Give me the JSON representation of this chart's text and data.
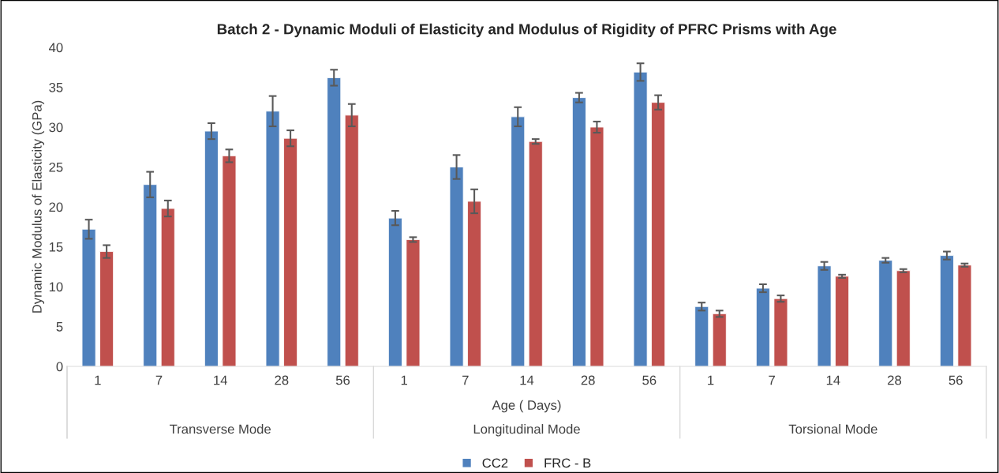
{
  "chart_data": {
    "type": "bar",
    "title": "Batch 2 - Dynamic Moduli of Elasticity and Modulus of Rigidity of PFRC Prisms with Age",
    "xlabel": "Age ( Days)",
    "ylabel": "Dynamic Modulus of Elasticity (GPa)",
    "categories": [
      "1",
      "7",
      "14",
      "28",
      "56",
      "1",
      "7",
      "14",
      "28",
      "56",
      "1",
      "7",
      "14",
      "28",
      "56"
    ],
    "annotations": [
      "Transverse Mode",
      "Longitudinal Mode",
      "Torsional Mode"
    ],
    "series": [
      {
        "name": "CC2",
        "color": "#4f81bd",
        "values": [
          17.2,
          22.8,
          29.5,
          32.0,
          36.2,
          18.6,
          25.0,
          31.3,
          33.7,
          36.9,
          7.5,
          9.8,
          12.6,
          13.3,
          13.9
        ],
        "errors": [
          1.2,
          1.6,
          1.0,
          1.9,
          1.0,
          0.9,
          1.5,
          1.2,
          0.6,
          1.1,
          0.5,
          0.5,
          0.5,
          0.3,
          0.5
        ]
      },
      {
        "name": "FRC - B",
        "color": "#c0504d",
        "values": [
          14.4,
          19.8,
          26.4,
          28.6,
          31.5,
          15.9,
          20.7,
          28.2,
          30.0,
          33.1,
          6.6,
          8.5,
          11.3,
          12.0,
          12.7
        ],
        "errors": [
          0.8,
          1.0,
          0.8,
          1.0,
          1.4,
          0.3,
          1.5,
          0.3,
          0.7,
          0.9,
          0.4,
          0.4,
          0.2,
          0.2,
          0.2
        ]
      }
    ],
    "ylim": [
      0,
      40
    ],
    "yticks": [
      0,
      5,
      10,
      15,
      20,
      25,
      30,
      35,
      40
    ],
    "grid": false,
    "legend": "bottom"
  }
}
